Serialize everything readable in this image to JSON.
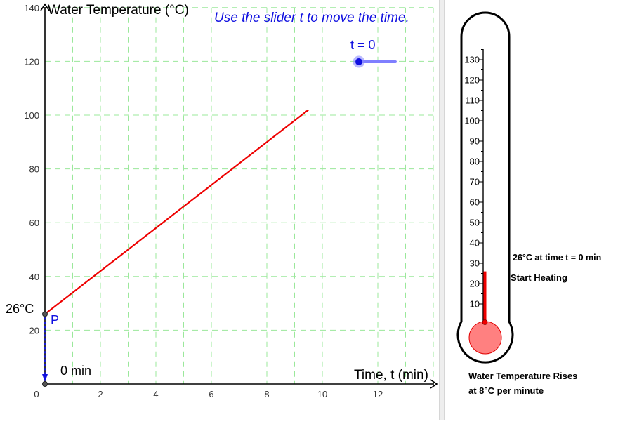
{
  "graph": {
    "slider_hint": "Use the slider t to move the time.",
    "slider_label": "t = 0",
    "slider": {
      "value": 0,
      "min": 0,
      "max": 12
    },
    "y_axis_title": "Water Temperature (°C)",
    "x_axis_title": "Time, t (min)",
    "x_ticks": [
      "0",
      "2",
      "4",
      "6",
      "8",
      "10",
      "12"
    ],
    "y_ticks": [
      "20",
      "40",
      "60",
      "80",
      "100",
      "120",
      "140"
    ],
    "start_temp_label": "26°C",
    "point_label": "P",
    "start_time_label": "0 min",
    "colors": {
      "line": "#ee0000",
      "point": "#1010e0",
      "grid": "#9be89b"
    }
  },
  "chart_data": {
    "type": "line",
    "title": "",
    "xlabel": "Time, t (min)",
    "ylabel": "Water Temperature (°C)",
    "xlim": [
      0,
      14
    ],
    "ylim": [
      0,
      140
    ],
    "grid": true,
    "series": [
      {
        "x": [
          0,
          9.5
        ],
        "y": [
          26,
          102
        ]
      }
    ],
    "points": [
      {
        "label": "P",
        "x": 0,
        "y": 26
      }
    ]
  },
  "thermometer": {
    "scale_labels": [
      "130",
      "120",
      "110",
      "100",
      "90",
      "80",
      "70",
      "60",
      "50",
      "40",
      "30",
      "20",
      "10"
    ],
    "reading_value": 26,
    "reading_label": "26°C at time t = 0 min",
    "start_label": "Start Heating",
    "rate_line1": "Water Temperature Rises",
    "rate_line2": "at 8°C per minute",
    "colors": {
      "mercury": "#ee0000",
      "bulb": "#ff8080"
    }
  }
}
